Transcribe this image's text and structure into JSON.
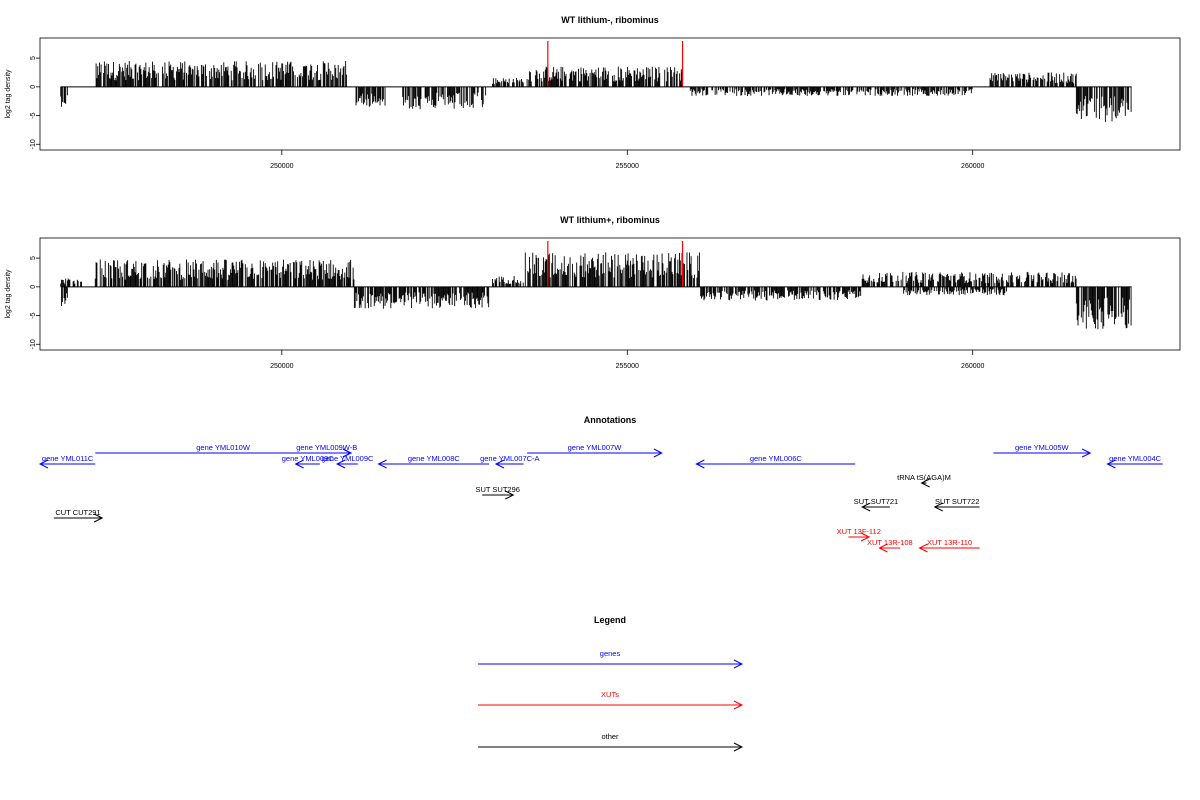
{
  "colors": {
    "gene": "#0000ff",
    "xut": "#ff0000",
    "other": "#000000",
    "marker": "#ff0000",
    "bars": "#000000"
  },
  "chart_data": [
    {
      "type": "bar",
      "title": "WT lithium-, ribominus",
      "ylabel": "log2 tag density",
      "xlim": [
        246500,
        263000
      ],
      "ylim": [
        -11,
        8.5
      ],
      "xticks": [
        250000,
        255000,
        260000
      ],
      "xtick_labels": [
        "250000",
        "255000",
        "260000"
      ],
      "yticks": [
        5,
        0,
        -5,
        -10
      ],
      "ytick_labels": [
        "5",
        "0",
        "-5",
        "-10"
      ],
      "grid": false,
      "markers": [
        253850,
        255800
      ],
      "profile": {
        "x_start": 246800,
        "x_end": 262300,
        "segments": [
          {
            "from": 246800,
            "to": 246900,
            "strand": "-",
            "amp": 3.5
          },
          {
            "from": 247300,
            "to": 250950,
            "strand": "+",
            "amp": 4.5
          },
          {
            "from": 251050,
            "to": 251500,
            "strand": "-",
            "amp": 3.5
          },
          {
            "from": 251750,
            "to": 252950,
            "strand": "-",
            "amp": 4.0
          },
          {
            "from": 253050,
            "to": 253500,
            "strand": "+",
            "amp": 1.6
          },
          {
            "from": 253550,
            "to": 255800,
            "strand": "+",
            "amp": 3.6
          },
          {
            "from": 255900,
            "to": 260000,
            "strand": "-",
            "amp": 1.6
          },
          {
            "from": 260250,
            "to": 261500,
            "strand": "+",
            "amp": 2.5
          },
          {
            "from": 261500,
            "to": 262300,
            "strand": "-",
            "amp": 6.2
          }
        ]
      }
    },
    {
      "type": "bar",
      "title": "WT lithium+, ribominus",
      "ylabel": "log2 tag density",
      "xlim": [
        246500,
        263000
      ],
      "ylim": [
        -11,
        8.5
      ],
      "xticks": [
        250000,
        255000,
        260000
      ],
      "xtick_labels": [
        "250000",
        "255000",
        "260000"
      ],
      "yticks": [
        5,
        0,
        -5,
        -10
      ],
      "ytick_labels": [
        "5",
        "0",
        "-5",
        "-10"
      ],
      "grid": false,
      "markers": [
        253850,
        255800
      ],
      "profile": {
        "x_start": 246800,
        "x_end": 262300,
        "segments": [
          {
            "from": 246800,
            "to": 246900,
            "strand": "-",
            "amp": 3.5
          },
          {
            "from": 246800,
            "to": 247100,
            "strand": "+",
            "amp": 1.5
          },
          {
            "from": 247300,
            "to": 251050,
            "strand": "+",
            "amp": 4.8
          },
          {
            "from": 251050,
            "to": 253000,
            "strand": "-",
            "amp": 3.8
          },
          {
            "from": 253050,
            "to": 253500,
            "strand": "+",
            "amp": 2.0
          },
          {
            "from": 253500,
            "to": 256050,
            "strand": "+",
            "amp": 6.0
          },
          {
            "from": 256050,
            "to": 258400,
            "strand": "-",
            "amp": 2.4
          },
          {
            "from": 258400,
            "to": 261500,
            "strand": "+",
            "amp": 2.6
          },
          {
            "from": 259000,
            "to": 260500,
            "strand": "-",
            "amp": 1.5
          },
          {
            "from": 261500,
            "to": 262300,
            "strand": "-",
            "amp": 7.5
          }
        ]
      }
    }
  ],
  "annotations": {
    "title": "Annotations",
    "xlim": [
      246500,
      263000
    ],
    "features": [
      {
        "label": "gene YML011C",
        "type": "gene",
        "strand": "-",
        "start": 246500,
        "end": 247300,
        "row": 0
      },
      {
        "label": "gene YML010W",
        "type": "gene",
        "strand": "+",
        "start": 247300,
        "end": 251000,
        "row": 1
      },
      {
        "label": "gene YML009W-B",
        "type": "gene",
        "strand": "+",
        "start": 250300,
        "end": 251000,
        "row": 1
      },
      {
        "label": "gene YML009C",
        "type": "gene",
        "strand": "-",
        "start": 250200,
        "end": 250550,
        "row": 0
      },
      {
        "label": "gene YML009C",
        "type": "gene",
        "strand": "-",
        "start": 250800,
        "end": 251100,
        "row": 0
      },
      {
        "label": "gene YML008C",
        "type": "gene",
        "strand": "-",
        "start": 251400,
        "end": 253000,
        "row": 0
      },
      {
        "label": "gene YML007C-A",
        "type": "gene",
        "strand": "-",
        "start": 253100,
        "end": 253500,
        "row": 0
      },
      {
        "label": "gene YML007W",
        "type": "gene",
        "strand": "+",
        "start": 253550,
        "end": 255500,
        "row": 1
      },
      {
        "label": "gene YML006C",
        "type": "gene",
        "strand": "-",
        "start": 256000,
        "end": 258300,
        "row": 0
      },
      {
        "label": "gene YML005W",
        "type": "gene",
        "strand": "+",
        "start": 260300,
        "end": 261700,
        "row": 1
      },
      {
        "label": "gene YML004C",
        "type": "gene",
        "strand": "-",
        "start": 261950,
        "end": 262750,
        "row": 0
      },
      {
        "label": "tRNA tS(AGA)M",
        "type": "other",
        "strand": "-",
        "start": 259260,
        "end": 259330,
        "row": 2
      },
      {
        "label": "SUT SUT296",
        "type": "other",
        "strand": "+",
        "start": 252900,
        "end": 253350,
        "row": 3
      },
      {
        "label": "SUT SUT721",
        "type": "other",
        "strand": "-",
        "start": 258400,
        "end": 258800,
        "row": 4
      },
      {
        "label": "SUT SUT722",
        "type": "other",
        "strand": "-",
        "start": 259450,
        "end": 260100,
        "row": 4
      },
      {
        "label": "CUT CUT291",
        "type": "other",
        "strand": "+",
        "start": 246700,
        "end": 247400,
        "row": 5
      },
      {
        "label": "XUT 13F-112",
        "type": "xut",
        "strand": "+",
        "start": 258200,
        "end": 258500,
        "row": 6
      },
      {
        "label": "XUT 13R-108",
        "type": "xut",
        "strand": "-",
        "start": 258650,
        "end": 258950,
        "row": 7
      },
      {
        "label": "XUT 13R-110",
        "type": "xut",
        "strand": "-",
        "start": 259230,
        "end": 260100,
        "row": 7
      }
    ]
  },
  "legend": {
    "title": "Legend",
    "items": [
      {
        "label": "genes",
        "type": "gene"
      },
      {
        "label": "XUTs",
        "type": "xut"
      },
      {
        "label": "other",
        "type": "other"
      }
    ]
  }
}
